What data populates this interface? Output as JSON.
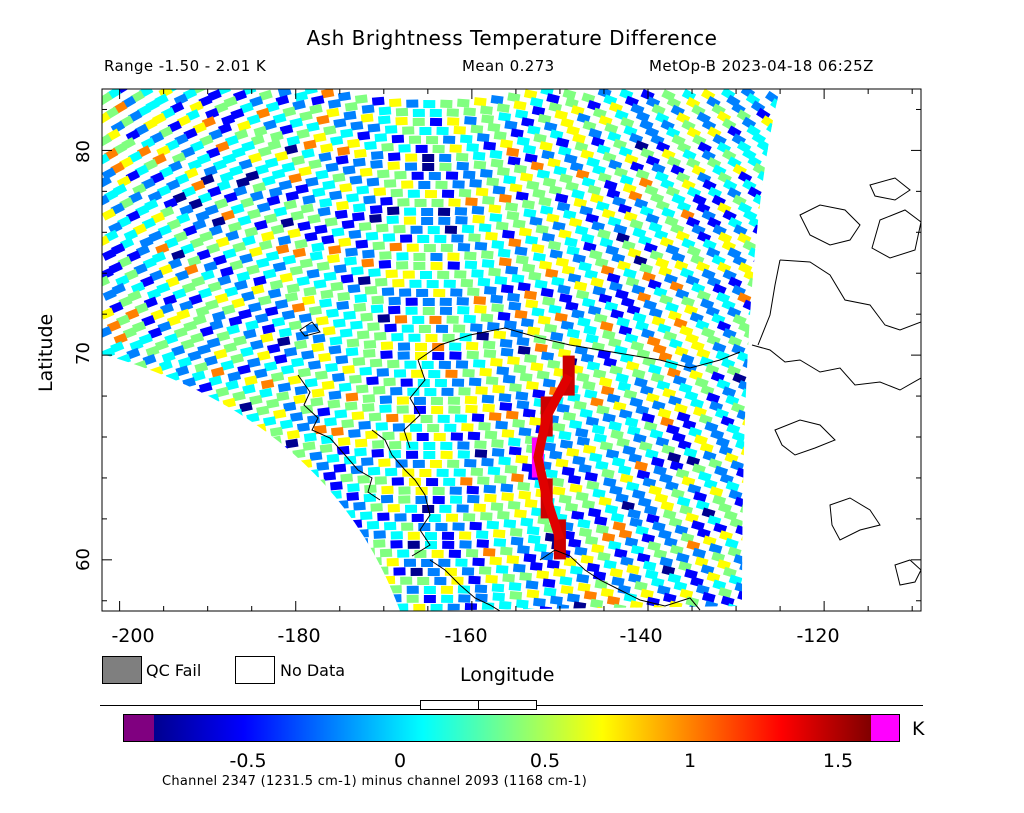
{
  "header": {
    "title": "Ash Brightness Temperature Difference",
    "range": "Range -1.50 - 2.01 K",
    "mean": "Mean 0.273",
    "satellite_time": "MetOp-B 2023-04-18 06:25Z"
  },
  "legend": {
    "qc_fail": "QC Fail",
    "no_data": "No Data",
    "qc_fail_color": "#7f7f7f",
    "no_data_color": "#ffffff"
  },
  "colorbar": {
    "unit": "K",
    "ticks": [
      "-0.5",
      "0",
      "0.5",
      "1",
      "1.5"
    ],
    "under_color": "#800080",
    "over_color": "#ff00ff"
  },
  "footer": "Channel 2347 (1231.5 cm-1) minus channel 2093 (1168 cm-1)",
  "chart_data": {
    "type": "heatmap",
    "title": "Ash Brightness Temperature Difference",
    "xlabel": "Longitude",
    "ylabel": "Latitude",
    "xlim": [
      -202,
      -109
    ],
    "ylim": [
      57.5,
      83
    ],
    "xticks": [
      -200,
      -180,
      -160,
      -140,
      -120
    ],
    "yticks": [
      60,
      70,
      80
    ],
    "value_range": [
      -1.5,
      2.01
    ],
    "mean": 0.273,
    "units": "K",
    "colorbar_range": [
      -0.9,
      1.6
    ],
    "colormap": [
      "#00008f",
      "#0000ff",
      "#0080ff",
      "#00ffff",
      "#80ff80",
      "#ffff00",
      "#ff8000",
      "#ff0000",
      "#800000"
    ],
    "swath_edge_lon": -129,
    "ash_feature": [
      {
        "lon": -150,
        "lat": 61
      },
      {
        "lon": -151.5,
        "lat": 63
      },
      {
        "lon": -152.5,
        "lat": 65
      },
      {
        "lon": -151.5,
        "lat": 67
      },
      {
        "lon": -149,
        "lat": 69
      }
    ]
  }
}
